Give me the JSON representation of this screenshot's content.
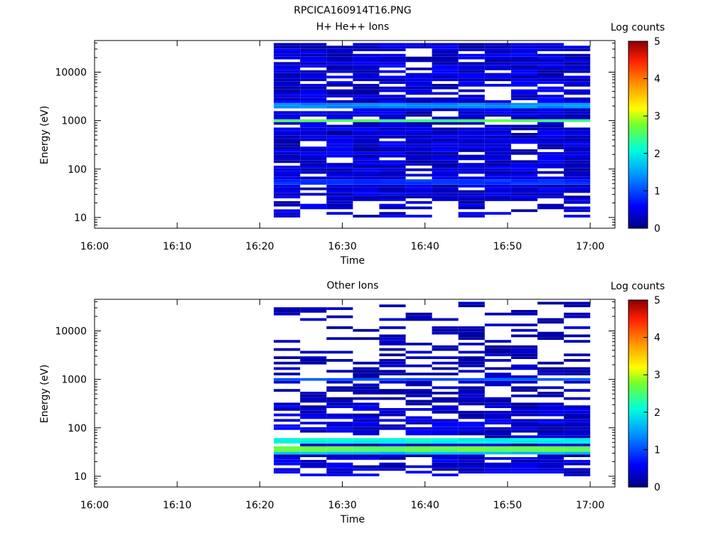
{
  "figure_title": "RPCICA160914T16.PNG",
  "chart_data": [
    {
      "type": "heatmap",
      "title": "H+ He++ Ions",
      "xlabel": "Time",
      "ylabel": "Energy (eV)",
      "x_ticks": [
        "16:00",
        "16:10",
        "16:20",
        "16:30",
        "16:40",
        "16:50",
        "17:00"
      ],
      "x_range": [
        "16:00",
        "17:03"
      ],
      "y_scale": "log",
      "y_ticks": [
        "10",
        "100",
        "1000",
        "10000"
      ],
      "y_range": [
        6,
        45000
      ],
      "data_time_range": [
        "16:21.7",
        "17:00"
      ],
      "colorbar": {
        "label": "Log counts",
        "ticks": [
          "0",
          "1",
          "2",
          "3",
          "4",
          "5"
        ],
        "range": [
          0,
          5
        ],
        "colormap": "rainbow"
      },
      "description_values": "Spectrogram columns every 3.2 min from 16:21.7 to 17:00; background level ~0.1-0.6 log counts, band near 1000 eV ~2.7 log counts, band near 2000 eV ~1.5, faint band near 55 eV ~1.0",
      "bands": [
        {
          "energy_eV": 1000,
          "log_counts": 2.7
        },
        {
          "energy_eV": 2000,
          "log_counts": 1.5
        },
        {
          "energy_eV": 55,
          "log_counts": 1.0
        }
      ]
    },
    {
      "type": "heatmap",
      "title": "Other Ions",
      "xlabel": "Time",
      "ylabel": "Energy (eV)",
      "x_ticks": [
        "16:00",
        "16:10",
        "16:20",
        "16:30",
        "16:40",
        "16:50",
        "17:00"
      ],
      "x_range": [
        "16:00",
        "17:03"
      ],
      "y_scale": "log",
      "y_ticks": [
        "10",
        "100",
        "1000",
        "10000"
      ],
      "y_range": [
        6,
        45000
      ],
      "data_time_range": [
        "16:21.7",
        "17:00"
      ],
      "colorbar": {
        "label": "Log counts",
        "ticks": [
          "0",
          "1",
          "2",
          "3",
          "4",
          "5"
        ],
        "range": [
          0,
          5
        ],
        "colormap": "rainbow"
      },
      "bands": [
        {
          "energy_eV": 1000,
          "log_counts": 1.2
        },
        {
          "energy_eV": 55,
          "log_counts": 2.2
        },
        {
          "energy_eV": 36,
          "log_counts": 2.8
        },
        {
          "energy_eV": 30,
          "log_counts": 1.8
        }
      ]
    }
  ]
}
